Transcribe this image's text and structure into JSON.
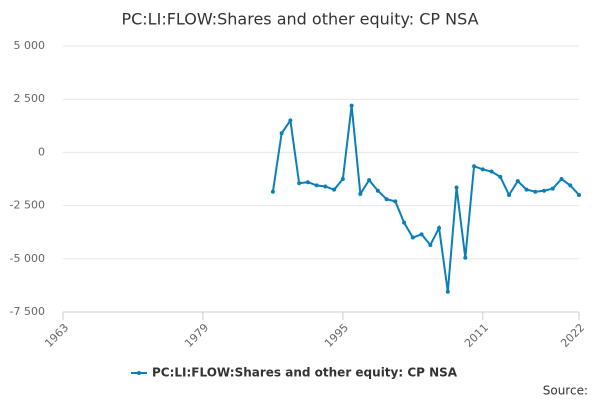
{
  "chart_data": {
    "type": "line",
    "title": "PC:LI:FLOW:Shares and other equity: CP NSA",
    "x": [
      1987,
      1988,
      1989,
      1990,
      1991,
      1992,
      1993,
      1994,
      1995,
      1996,
      1997,
      1998,
      1999,
      2000,
      2001,
      2002,
      2003,
      2004,
      2005,
      2006,
      2007,
      2008,
      2009,
      2010,
      2011,
      2012,
      2013,
      2014,
      2015,
      2016,
      2017,
      2018,
      2019,
      2020,
      2021,
      2022
    ],
    "series": [
      {
        "name": "PC:LI:FLOW:Shares and other equity: CP NSA",
        "color": "#0a7fb8",
        "values": [
          -1850,
          900,
          1500,
          -1450,
          -1400,
          -1550,
          -1600,
          -1750,
          -1250,
          2200,
          -1950,
          -1300,
          -1800,
          -2200,
          -2300,
          -3300,
          -4000,
          -3850,
          -4350,
          -3550,
          -6550,
          -1650,
          -4950,
          -650,
          -800,
          -900,
          -1150,
          -2000,
          -1350,
          -1750,
          -1850,
          -1800,
          -1700,
          -1250,
          -1550,
          -2000
        ]
      }
    ],
    "xlim": [
      1963,
      2022
    ],
    "xticks": [
      1963,
      1979,
      1995,
      2011,
      2022
    ],
    "ylim": [
      -7500,
      5000
    ],
    "yticks": [
      {
        "value": -7500,
        "label": "-7 500"
      },
      {
        "value": -5000,
        "label": "-5 000"
      },
      {
        "value": -2500,
        "label": "-2 500"
      },
      0,
      {
        "value": 2500,
        "label": "2 500"
      },
      {
        "value": 5000,
        "label": "5 000"
      }
    ],
    "grid": true,
    "legend": "bottom",
    "source": "Source:"
  }
}
